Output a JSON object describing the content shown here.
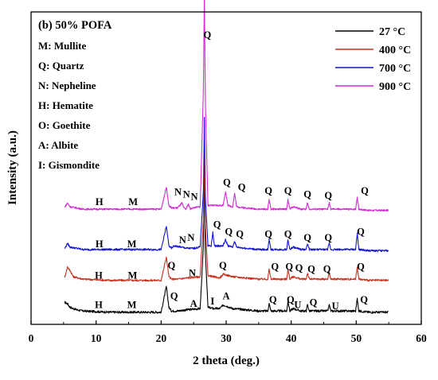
{
  "chart_data": {
    "type": "line",
    "panel_title": "(b) 50% POFA",
    "xlabel": "2 theta (deg.)",
    "ylabel": "Intensity (a.u.)",
    "xlim": [
      0,
      60
    ],
    "xticks": [
      "0",
      "10",
      "20",
      "30",
      "40",
      "50",
      "60"
    ],
    "yticks": [],
    "grid": false,
    "legend_position": "top-right",
    "phase_key": [
      "M: Mullite",
      "Q: Quartz",
      "N: Nepheline",
      "H: Hematite",
      "O: Goethite",
      "A: Albite",
      "I: Gismondite"
    ],
    "series": [
      {
        "name": "27 °C",
        "color": "#000000",
        "baseline": 0.5,
        "noise": 0.9,
        "x": [
          5.2,
          5.6,
          6.0,
          7.0,
          8.0,
          12.0,
          20.0,
          20.8,
          21.2,
          21.6,
          22.5,
          24.0,
          26.0,
          26.5,
          26.65,
          26.8,
          27.2,
          28.0,
          29.0,
          29.6,
          31.0,
          33.0,
          35.0,
          36.4,
          36.6,
          36.9,
          38.0,
          39.3,
          39.5,
          39.8,
          40.3,
          41.5,
          42.3,
          42.5,
          42.8,
          44.0,
          45.6,
          45.85,
          46.1,
          48.0,
          49.9,
          50.15,
          50.4,
          52.0,
          54.9
        ],
        "y": [
          9,
          8,
          5,
          3,
          2,
          1,
          1,
          22,
          5,
          2,
          2,
          3,
          4,
          55,
          120,
          50,
          5,
          4,
          4,
          7,
          4,
          3,
          2,
          2,
          8,
          2,
          2,
          2,
          10,
          2,
          4,
          2,
          2,
          7,
          2,
          2,
          2,
          7,
          2,
          2,
          2,
          12,
          2,
          1,
          1
        ]
      },
      {
        "name": "400 °C",
        "color": "#c8321e",
        "baseline": 2.5,
        "noise": 0.8,
        "x": [
          5.2,
          5.6,
          6.0,
          6.5,
          8.0,
          12.0,
          20.0,
          20.8,
          21.2,
          21.6,
          22.5,
          24.0,
          26.0,
          26.5,
          26.65,
          26.8,
          27.2,
          28.0,
          29.0,
          29.6,
          31.0,
          33.0,
          35.0,
          36.4,
          36.6,
          36.9,
          38.0,
          39.3,
          39.5,
          39.8,
          40.3,
          41.5,
          42.3,
          42.5,
          42.8,
          44.0,
          45.6,
          45.85,
          46.1,
          48.0,
          49.9,
          50.15,
          50.4,
          52.0,
          54.9
        ],
        "y": [
          4,
          12,
          9,
          4,
          2,
          1,
          1,
          20,
          4,
          2,
          2,
          3,
          4,
          50,
          110,
          45,
          5,
          4,
          3,
          6,
          4,
          3,
          2,
          2,
          10,
          2,
          2,
          2,
          10,
          2,
          4,
          2,
          2,
          7,
          2,
          2,
          2,
          7,
          2,
          2,
          2,
          12,
          2,
          1,
          1
        ]
      },
      {
        "name": "700 °C",
        "color": "#1414d2",
        "baseline": 2.0,
        "noise": 0.8,
        "x": [
          5.2,
          5.6,
          6.0,
          8.0,
          12.0,
          16.0,
          20.0,
          20.8,
          21.2,
          21.6,
          22.0,
          23.0,
          24.0,
          25.0,
          26.0,
          26.5,
          26.65,
          26.8,
          27.2,
          27.7,
          27.95,
          28.2,
          29.5,
          29.9,
          30.3,
          31.0,
          31.3,
          31.6,
          33.0,
          35.0,
          36.4,
          36.6,
          36.9,
          38.0,
          39.3,
          39.5,
          39.8,
          40.3,
          41.5,
          42.3,
          42.5,
          42.8,
          44.0,
          45.6,
          45.85,
          46.1,
          48.0,
          49.9,
          50.15,
          50.4,
          52.0,
          54.9
        ],
        "y": [
          3,
          7,
          4,
          2,
          2,
          2,
          2,
          21,
          5,
          3,
          5,
          4,
          3,
          3,
          4,
          50,
          110,
          45,
          5,
          5,
          16,
          5,
          5,
          10,
          5,
          4,
          9,
          4,
          3,
          2,
          2,
          10,
          2,
          2,
          2,
          10,
          2,
          4,
          2,
          2,
          7,
          2,
          2,
          2,
          7,
          2,
          2,
          2,
          15,
          2,
          1,
          1
        ]
      },
      {
        "name": "900 °C",
        "color": "#d428d4",
        "baseline": 2.5,
        "noise": 0.7,
        "x": [
          5.2,
          5.6,
          6.0,
          8.0,
          12.0,
          16.0,
          20.0,
          20.8,
          21.2,
          21.6,
          22.5,
          23.2,
          23.5,
          23.8,
          24.2,
          24.5,
          24.8,
          26.0,
          26.5,
          26.65,
          26.8,
          27.2,
          29.5,
          29.9,
          30.3,
          31.0,
          31.3,
          31.6,
          33.0,
          35.0,
          36.4,
          36.6,
          36.9,
          38.0,
          39.3,
          39.5,
          39.8,
          40.3,
          41.5,
          42.3,
          42.5,
          42.8,
          44.0,
          45.6,
          45.85,
          46.1,
          48.0,
          49.9,
          50.15,
          50.4,
          52.0,
          54.9
        ],
        "y": [
          4,
          7,
          4,
          2,
          2,
          2,
          2,
          20,
          5,
          3,
          3,
          7,
          3,
          2,
          6,
          2,
          3,
          4,
          100,
          180,
          90,
          5,
          5,
          16,
          5,
          4,
          15,
          4,
          3,
          2,
          2,
          10,
          2,
          2,
          2,
          10,
          2,
          4,
          2,
          2,
          7,
          2,
          2,
          2,
          7,
          2,
          2,
          2,
          12,
          2,
          1,
          1
        ]
      }
    ],
    "annotations": [
      {
        "text": "Q",
        "x": 27.1,
        "series": 3,
        "level": 145
      },
      {
        "text": "H",
        "x": 10.5,
        "series": 3,
        "level": 8
      },
      {
        "text": "M",
        "x": 15.7,
        "series": 3,
        "level": 8
      },
      {
        "text": "N",
        "x": 22.6,
        "series": 3,
        "level": 16
      },
      {
        "text": "N",
        "x": 23.9,
        "series": 3,
        "level": 14
      },
      {
        "text": "N",
        "x": 25.1,
        "series": 3,
        "level": 12
      },
      {
        "text": "Q",
        "x": 30.1,
        "series": 3,
        "level": 24
      },
      {
        "text": "Q",
        "x": 32.4,
        "series": 3,
        "level": 20
      },
      {
        "text": "Q",
        "x": 36.5,
        "series": 3,
        "level": 17
      },
      {
        "text": "Q",
        "x": 39.5,
        "series": 3,
        "level": 17
      },
      {
        "text": "Q",
        "x": 42.5,
        "series": 3,
        "level": 14
      },
      {
        "text": "Q",
        "x": 45.7,
        "series": 3,
        "level": 13
      },
      {
        "text": "Q",
        "x": 51.3,
        "series": 3,
        "level": 17
      },
      {
        "text": "H",
        "x": 10.5,
        "series": 2,
        "level": 6
      },
      {
        "text": "M",
        "x": 15.5,
        "series": 2,
        "level": 6
      },
      {
        "text": "N",
        "x": 23.3,
        "series": 2,
        "level": 9
      },
      {
        "text": "N",
        "x": 24.6,
        "series": 2,
        "level": 11
      },
      {
        "text": "Q",
        "x": 28.6,
        "series": 2,
        "level": 22
      },
      {
        "text": "Q",
        "x": 30.4,
        "series": 2,
        "level": 16
      },
      {
        "text": "Q",
        "x": 32.1,
        "series": 2,
        "level": 14
      },
      {
        "text": "Q",
        "x": 36.5,
        "series": 2,
        "level": 14
      },
      {
        "text": "Q",
        "x": 39.5,
        "series": 2,
        "level": 14
      },
      {
        "text": "Q",
        "x": 42.5,
        "series": 2,
        "level": 11
      },
      {
        "text": "Q",
        "x": 45.7,
        "series": 2,
        "level": 11
      },
      {
        "text": "Q",
        "x": 50.7,
        "series": 2,
        "level": 16
      },
      {
        "text": "H",
        "x": 10.4,
        "series": 1,
        "level": 5
      },
      {
        "text": "M",
        "x": 15.6,
        "series": 1,
        "level": 5
      },
      {
        "text": "Q",
        "x": 21.6,
        "series": 1,
        "level": 13
      },
      {
        "text": "N",
        "x": 24.8,
        "series": 1,
        "level": 7
      },
      {
        "text": "Q",
        "x": 29.5,
        "series": 1,
        "level": 13
      },
      {
        "text": "Q",
        "x": 37.5,
        "series": 1,
        "level": 12
      },
      {
        "text": "Q",
        "x": 39.7,
        "series": 1,
        "level": 12
      },
      {
        "text": "Q",
        "x": 41.2,
        "series": 1,
        "level": 11
      },
      {
        "text": "Q",
        "x": 43.1,
        "series": 1,
        "level": 10
      },
      {
        "text": "Q",
        "x": 45.5,
        "series": 1,
        "level": 10
      },
      {
        "text": "Q",
        "x": 50.7,
        "series": 1,
        "level": 12
      },
      {
        "text": "H",
        "x": 10.4,
        "series": 0,
        "level": 5
      },
      {
        "text": "M",
        "x": 15.5,
        "series": 0,
        "level": 5
      },
      {
        "text": "Q",
        "x": 22.0,
        "series": 0,
        "level": 12
      },
      {
        "text": "A",
        "x": 25.0,
        "series": 0,
        "level": 6
      },
      {
        "text": "I",
        "x": 27.9,
        "series": 0,
        "level": 8
      },
      {
        "text": "A",
        "x": 30.0,
        "series": 0,
        "level": 12
      },
      {
        "text": "Q",
        "x": 37.2,
        "series": 0,
        "level": 9
      },
      {
        "text": "Q",
        "x": 39.9,
        "series": 0,
        "level": 9
      },
      {
        "text": "U",
        "x": 41.0,
        "series": 0,
        "level": 5
      },
      {
        "text": "Q",
        "x": 43.4,
        "series": 0,
        "level": 7
      },
      {
        "text": "U",
        "x": 46.8,
        "series": 0,
        "level": 4
      },
      {
        "text": "Q",
        "x": 51.2,
        "series": 0,
        "level": 9
      }
    ]
  }
}
